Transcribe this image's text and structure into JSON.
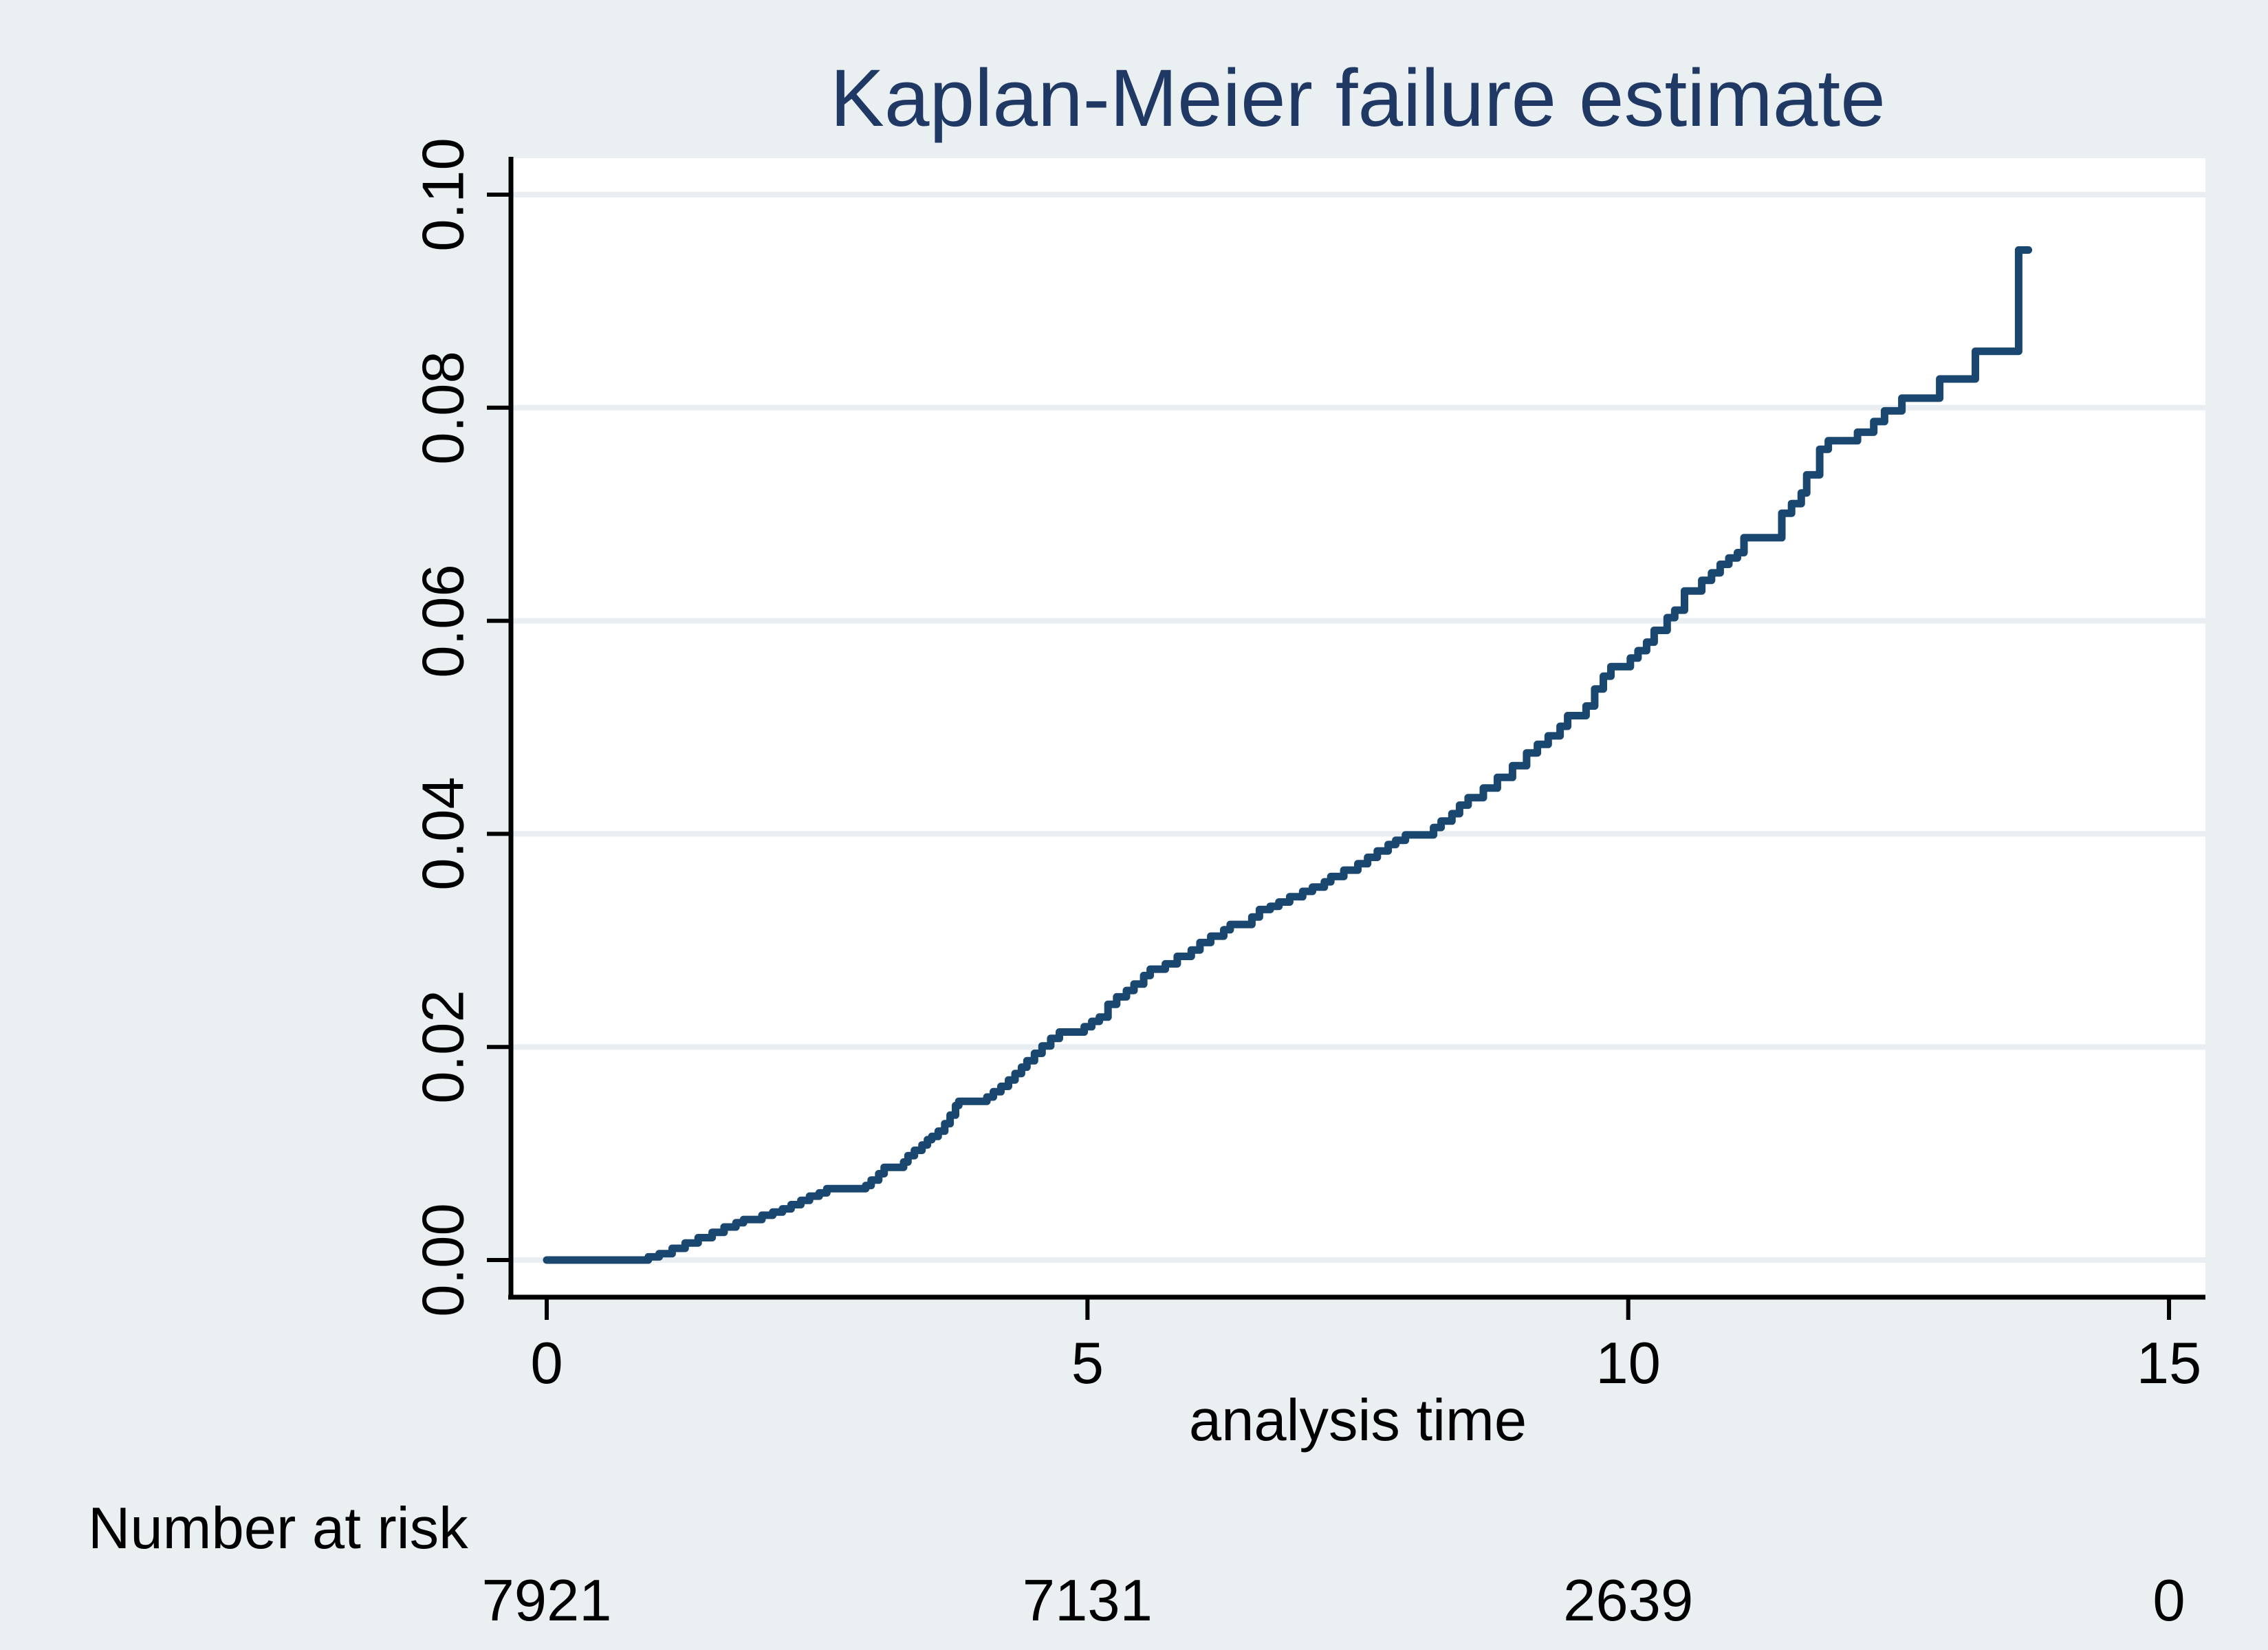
{
  "title": "Kaplan-Meier failure estimate",
  "x_axis": {
    "label": "analysis time",
    "tick_labels": [
      "0",
      "5",
      "10",
      "15"
    ],
    "tick_values": [
      0,
      5,
      10,
      15
    ]
  },
  "y_axis": {
    "tick_labels": [
      "0.00",
      "0.02",
      "0.04",
      "0.06",
      "0.08",
      "0.10"
    ],
    "tick_values": [
      0,
      0.02,
      0.04,
      0.06,
      0.08,
      0.1
    ]
  },
  "risk_table": {
    "label": "Number at risk",
    "counts": [
      "7921",
      "7131",
      "2639",
      "0"
    ]
  },
  "colors": {
    "background": "#eaf0f2",
    "plot_background": "#ffffff",
    "gridline": "#e8eef1",
    "curve": "#1a476f",
    "title": "#1f3864",
    "axis": "#000000"
  },
  "chart_data": {
    "type": "line",
    "subtype": "kaplan-meier-failure-step",
    "title": "Kaplan-Meier failure estimate",
    "xlabel": "analysis time",
    "ylabel": "",
    "xlim": [
      0,
      15
    ],
    "ylim": [
      0,
      0.1
    ],
    "x_ticks": [
      0,
      5,
      10,
      15
    ],
    "y_ticks": [
      0,
      0.02,
      0.04,
      0.06,
      0.08,
      0.1
    ],
    "grid": true,
    "legend": false,
    "step_mode": "after",
    "curve_end_time": 13.7,
    "series": [
      {
        "name": "failure estimate",
        "points": [
          [
            0,
            0
          ],
          [
            0.94,
            0.0003
          ],
          [
            1.04,
            0.0006
          ],
          [
            1.16,
            0.0011
          ],
          [
            1.28,
            0.0016
          ],
          [
            1.4,
            0.0021
          ],
          [
            1.53,
            0.0026
          ],
          [
            1.64,
            0.0031
          ],
          [
            1.75,
            0.0035
          ],
          [
            1.82,
            0.0038
          ],
          [
            1.99,
            0.0042
          ],
          [
            2.09,
            0.0045
          ],
          [
            2.18,
            0.0048
          ],
          [
            2.26,
            0.0052
          ],
          [
            2.35,
            0.0056
          ],
          [
            2.43,
            0.006
          ],
          [
            2.52,
            0.0063
          ],
          [
            2.59,
            0.0067
          ],
          [
            2.95,
            0.007
          ],
          [
            3.0,
            0.0075
          ],
          [
            3.07,
            0.0081
          ],
          [
            3.12,
            0.0087
          ],
          [
            3.3,
            0.0092
          ],
          [
            3.34,
            0.0098
          ],
          [
            3.4,
            0.0103
          ],
          [
            3.47,
            0.0108
          ],
          [
            3.52,
            0.0113
          ],
          [
            3.56,
            0.0116
          ],
          [
            3.62,
            0.0121
          ],
          [
            3.68,
            0.0128
          ],
          [
            3.73,
            0.0136
          ],
          [
            3.78,
            0.0145
          ],
          [
            3.81,
            0.0149
          ],
          [
            4.07,
            0.0153
          ],
          [
            4.13,
            0.0158
          ],
          [
            4.2,
            0.0163
          ],
          [
            4.27,
            0.0169
          ],
          [
            4.33,
            0.0175
          ],
          [
            4.39,
            0.0181
          ],
          [
            4.44,
            0.0187
          ],
          [
            4.51,
            0.0194
          ],
          [
            4.58,
            0.0201
          ],
          [
            4.66,
            0.0208
          ],
          [
            4.74,
            0.0214
          ],
          [
            4.97,
            0.0219
          ],
          [
            5.04,
            0.0224
          ],
          [
            5.11,
            0.0228
          ],
          [
            5.19,
            0.024
          ],
          [
            5.27,
            0.0247
          ],
          [
            5.36,
            0.0253
          ],
          [
            5.43,
            0.0259
          ],
          [
            5.52,
            0.0267
          ],
          [
            5.58,
            0.0273
          ],
          [
            5.72,
            0.0278
          ],
          [
            5.83,
            0.0285
          ],
          [
            5.96,
            0.0291
          ],
          [
            6.04,
            0.0298
          ],
          [
            6.14,
            0.0304
          ],
          [
            6.26,
            0.031
          ],
          [
            6.32,
            0.0315
          ],
          [
            6.52,
            0.0322
          ],
          [
            6.59,
            0.0329
          ],
          [
            6.69,
            0.0332
          ],
          [
            6.77,
            0.0336
          ],
          [
            6.87,
            0.0341
          ],
          [
            6.99,
            0.0346
          ],
          [
            7.08,
            0.035
          ],
          [
            7.19,
            0.0355
          ],
          [
            7.25,
            0.036
          ],
          [
            7.37,
            0.0366
          ],
          [
            7.5,
            0.0372
          ],
          [
            7.59,
            0.0378
          ],
          [
            7.68,
            0.0384
          ],
          [
            7.78,
            0.039
          ],
          [
            7.85,
            0.0394
          ],
          [
            7.94,
            0.0399
          ],
          [
            8.2,
            0.0406
          ],
          [
            8.27,
            0.0412
          ],
          [
            8.37,
            0.0419
          ],
          [
            8.44,
            0.0427
          ],
          [
            8.52,
            0.0434
          ],
          [
            8.66,
            0.0443
          ],
          [
            8.79,
            0.0453
          ],
          [
            8.93,
            0.0464
          ],
          [
            9.06,
            0.0476
          ],
          [
            9.16,
            0.0484
          ],
          [
            9.26,
            0.0492
          ],
          [
            9.37,
            0.0501
          ],
          [
            9.44,
            0.0511
          ],
          [
            9.61,
            0.052
          ],
          [
            9.69,
            0.0536
          ],
          [
            9.77,
            0.0548
          ],
          [
            9.84,
            0.0557
          ],
          [
            10.02,
            0.0565
          ],
          [
            10.09,
            0.0572
          ],
          [
            10.17,
            0.058
          ],
          [
            10.24,
            0.0591
          ],
          [
            10.36,
            0.0603
          ],
          [
            10.43,
            0.061
          ],
          [
            10.52,
            0.0628
          ],
          [
            10.68,
            0.0638
          ],
          [
            10.77,
            0.0645
          ],
          [
            10.85,
            0.0653
          ],
          [
            10.93,
            0.0659
          ],
          [
            11.01,
            0.0664
          ],
          [
            11.07,
            0.0678
          ],
          [
            11.42,
            0.0701
          ],
          [
            11.51,
            0.071
          ],
          [
            11.6,
            0.072
          ],
          [
            11.65,
            0.0737
          ],
          [
            11.77,
            0.0761
          ],
          [
            11.85,
            0.0769
          ],
          [
            12.12,
            0.0777
          ],
          [
            12.27,
            0.0787
          ],
          [
            12.37,
            0.0797
          ],
          [
            12.53,
            0.0809
          ],
          [
            12.88,
            0.0827
          ],
          [
            13.21,
            0.0853
          ],
          [
            13.61,
            0.0948
          ]
        ]
      }
    ],
    "number_at_risk": {
      "times": [
        0,
        5,
        10,
        15
      ],
      "counts": [
        7921,
        7131,
        2639,
        0
      ]
    }
  }
}
